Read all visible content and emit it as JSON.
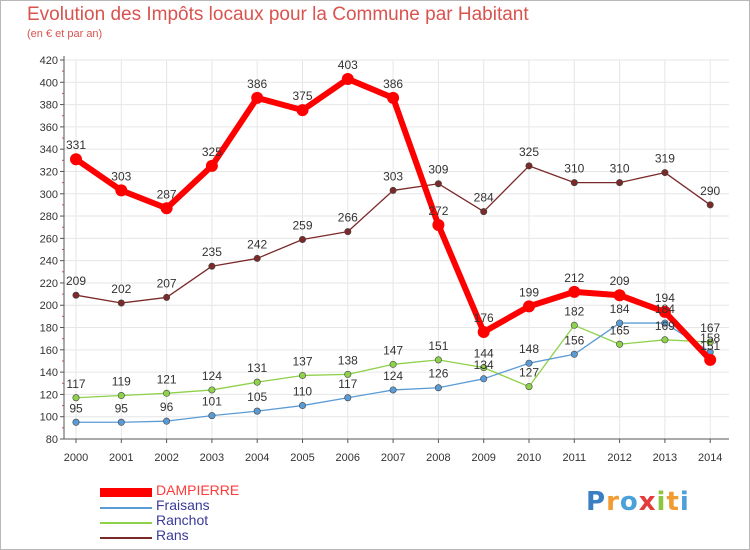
{
  "chart_data": {
    "type": "line",
    "title": "Evolution des Impôts locaux pour la Commune par Habitant",
    "subtitle": "(en € et par an)",
    "x": [
      "2000",
      "2001",
      "2002",
      "2003",
      "2004",
      "2005",
      "2006",
      "2007",
      "2008",
      "2009",
      "2010",
      "2011",
      "2012",
      "2013",
      "2014"
    ],
    "ylim": [
      80,
      420
    ],
    "yticks": [
      80,
      100,
      120,
      140,
      160,
      180,
      200,
      220,
      240,
      260,
      280,
      300,
      320,
      340,
      360,
      380,
      400,
      420
    ],
    "grid": true,
    "legend_position": "bottom-left",
    "series": [
      {
        "name": "DAMPIERRE",
        "color": "#ff0000",
        "values": [
          331,
          303,
          287,
          325,
          386,
          375,
          403,
          386,
          272,
          176,
          199,
          212,
          209,
          194,
          151
        ],
        "labels": [
          "331",
          "303",
          "287",
          "325",
          "386",
          "375",
          "403",
          "386",
          "272",
          "176",
          "199",
          "212",
          "209",
          "194",
          "151"
        ]
      },
      {
        "name": "Fraisans",
        "color": "#5b9bd5",
        "values": [
          95,
          95,
          96,
          101,
          105,
          110,
          117,
          124,
          126,
          134,
          148,
          156,
          184,
          184,
          158
        ],
        "labels": [
          "95",
          "95",
          "96",
          "101",
          "105",
          "110",
          "117",
          "124",
          "126",
          "134",
          "148",
          "156",
          "184",
          "184",
          "158"
        ]
      },
      {
        "name": "Ranchot",
        "color": "#8ed14a",
        "values": [
          117,
          119,
          121,
          124,
          131,
          137,
          138,
          147,
          151,
          144,
          127,
          182,
          165,
          169,
          167
        ],
        "labels": [
          "117",
          "119",
          "121",
          "124",
          "131",
          "137",
          "138",
          "147",
          "151",
          "144",
          "127",
          "182",
          "165",
          "169",
          "167"
        ]
      },
      {
        "name": "Rans",
        "color": "#7b2a2a",
        "values": [
          209,
          202,
          207,
          235,
          242,
          259,
          266,
          303,
          309,
          284,
          325,
          310,
          310,
          319,
          290
        ],
        "labels": [
          "209",
          "202",
          "207",
          "235",
          "242",
          "259",
          "266",
          "303",
          "309",
          "284",
          "325",
          "310",
          "310",
          "319",
          "290"
        ]
      }
    ]
  },
  "logo": {
    "letters": [
      "P",
      "r",
      "o",
      "x",
      "i",
      "t",
      "i"
    ],
    "colors": [
      "#3a7fc4",
      "#f29b30",
      "#4aa0d8",
      "#e23c3c",
      "#8cc63f",
      "#f29b30",
      "#4aa0d8"
    ]
  }
}
